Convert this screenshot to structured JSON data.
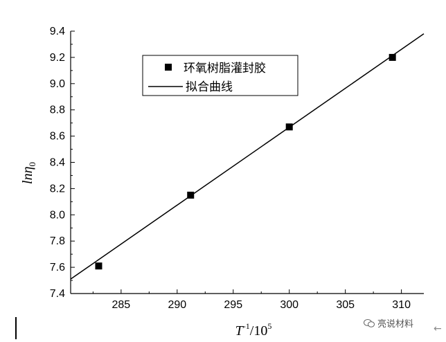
{
  "chart_data": {
    "type": "scatter",
    "xlabel_main": "T",
    "xlabel_sup": "-1",
    "xlabel_rest": "/10",
    "xlabel_sup2": "5",
    "ylabel_main": "lnη",
    "ylabel_sub": "0",
    "xlim": [
      280.5,
      312
    ],
    "ylim": [
      7.4,
      9.4
    ],
    "x_ticks": [
      285,
      290,
      295,
      300,
      305,
      310
    ],
    "y_ticks": [
      7.4,
      7.6,
      7.8,
      8.0,
      8.2,
      8.4,
      8.6,
      8.8,
      9.0,
      9.2,
      9.4
    ],
    "x_tick_labels": [
      "285",
      "290",
      "295",
      "300",
      "305",
      "310"
    ],
    "y_tick_labels": [
      "7.4",
      "7.6",
      "7.8",
      "8.0",
      "8.2",
      "8.4",
      "8.6",
      "8.8",
      "9.0",
      "9.2",
      "9.4"
    ],
    "series": [
      {
        "name": "环氧树脂灌封胶",
        "marker": "square",
        "color": "#000000",
        "points": [
          {
            "x": 283.0,
            "y": 7.61
          },
          {
            "x": 291.2,
            "y": 8.15
          },
          {
            "x": 300.0,
            "y": 8.67
          },
          {
            "x": 309.2,
            "y": 9.2
          }
        ]
      },
      {
        "name": "拟合曲线",
        "type": "line",
        "color": "#000000",
        "points": [
          {
            "x": 280.5,
            "y": 7.51
          },
          {
            "x": 312.0,
            "y": 9.38
          }
        ]
      }
    ],
    "legend_placement": "top-center",
    "grid": false
  },
  "watermark": {
    "text": "亮说材料"
  }
}
